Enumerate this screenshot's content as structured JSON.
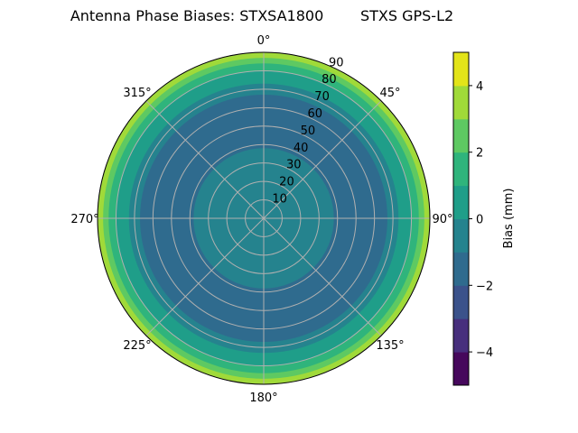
{
  "chart_data": {
    "type": "heatmap",
    "projection": "polar",
    "title": "Antenna Phase Biases: STXSA1800        STXS GPS-L2",
    "angular_ticks": [
      "0°",
      "45°",
      "90°",
      "135°",
      "180°",
      "225°",
      "270°",
      "315°"
    ],
    "radial_ticks": [
      10,
      20,
      30,
      40,
      50,
      60,
      70,
      80,
      90
    ],
    "radial_range": [
      0,
      90
    ],
    "angular_direction": "clockwise",
    "angular_zero": "top",
    "grid": true,
    "colorbar": {
      "label": "Bias (mm)",
      "colormap": "viridis",
      "levels": [
        -5,
        -4,
        -3,
        -2,
        -1,
        0,
        1,
        2,
        3,
        4,
        5
      ],
      "ticks": [
        -4,
        -2,
        0,
        2,
        4
      ],
      "tick_labels": [
        "−4",
        "−2",
        "0",
        "2",
        "4"
      ],
      "colors": [
        "#46085c",
        "#472f7d",
        "#3b528b",
        "#2f6b8e",
        "#25838e",
        "#1f9e89",
        "#2fb47c",
        "#5ec962",
        "#a0da39",
        "#e3e419"
      ]
    },
    "bands": [
      {
        "zenith": [
          0,
          38
        ],
        "bias": [
          -1,
          0
        ]
      },
      {
        "zenith": [
          38,
          67
        ],
        "bias": [
          -2,
          -1
        ]
      },
      {
        "zenith": [
          67,
          73
        ],
        "bias": [
          -1,
          0
        ]
      },
      {
        "zenith": [
          73,
          80
        ],
        "bias": [
          0,
          1
        ]
      },
      {
        "zenith": [
          80,
          84
        ],
        "bias": [
          1,
          2
        ]
      },
      {
        "zenith": [
          84,
          87
        ],
        "bias": [
          2,
          3
        ]
      },
      {
        "zenith": [
          87,
          90
        ],
        "bias": [
          3,
          4
        ]
      }
    ]
  }
}
